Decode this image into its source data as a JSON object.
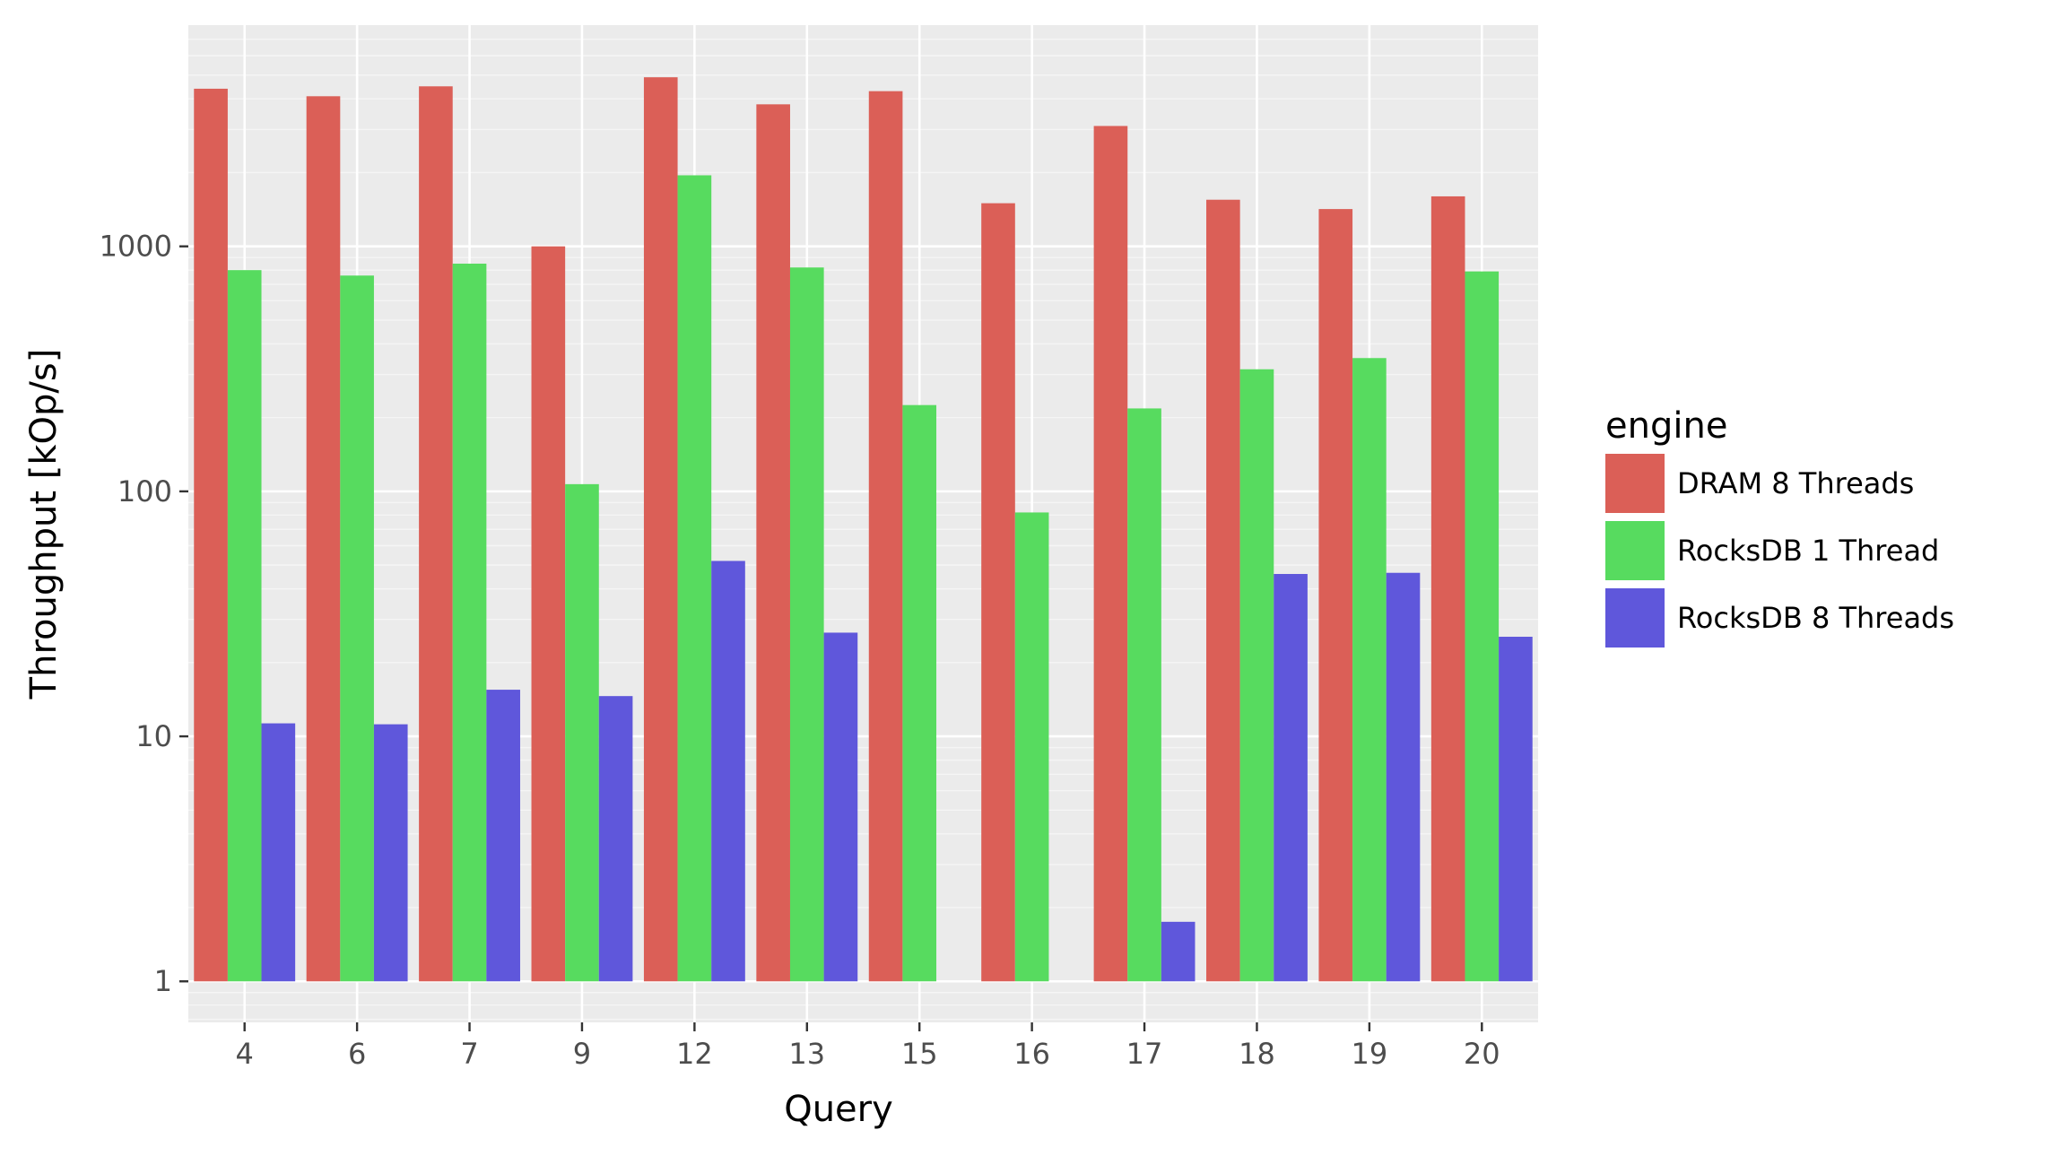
{
  "chart_data": {
    "type": "bar",
    "xlabel": "Query",
    "ylabel": "Throughput [kOp/s]",
    "y_scale": "log10",
    "ylim": [
      0.68,
      8000
    ],
    "y_ticks": [
      1,
      10,
      100,
      1000
    ],
    "y_tick_labels": [
      "1",
      "10",
      "100",
      "1000"
    ],
    "grid": true,
    "legend_title": "engine",
    "legend_position": "right",
    "categories": [
      "4",
      "6",
      "7",
      "9",
      "12",
      "13",
      "15",
      "16",
      "17",
      "18",
      "19",
      "20"
    ],
    "series": [
      {
        "name": "DRAM 8 Threads",
        "color": "#db5f57",
        "values": [
          4400,
          4100,
          4500,
          1000,
          4900,
          3800,
          4300,
          1500,
          3100,
          1550,
          1420,
          1600
        ]
      },
      {
        "name": "RocksDB 1 Thread",
        "color": "#57db5f",
        "values": [
          800,
          760,
          850,
          107,
          1950,
          820,
          225,
          82,
          218,
          315,
          350,
          790
        ]
      },
      {
        "name": "RocksDB 8 Threads",
        "color": "#5f57db",
        "values": [
          11.3,
          11.2,
          15.5,
          14.6,
          52,
          26.5,
          null,
          null,
          1.75,
          46,
          46.5,
          25.5
        ]
      }
    ]
  },
  "colors": {
    "panel_background": "#ebebeb",
    "grid_major": "#ffffff",
    "grid_minor": "#f5f5f5"
  }
}
